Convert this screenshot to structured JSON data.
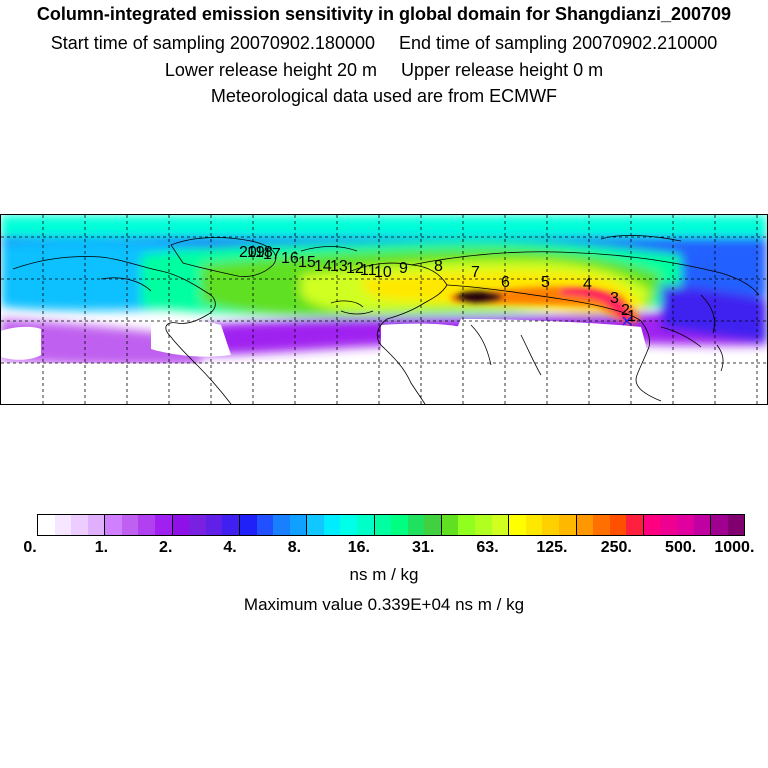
{
  "title": "Column-integrated emission sensitivity in global domain for Shangdianzi_200709",
  "start_label": "Start time of sampling 20070902.180000",
  "end_label": "End time of sampling 20070902.210000",
  "lower_label": "Lower release height   20 m",
  "upper_label": "Upper release height    0 m",
  "met_label": "Meteorological data used are from ECMWF",
  "trajectory_labels": [
    "20",
    "19",
    "18",
    "17",
    "16",
    "15",
    "14",
    "13",
    "12",
    "11",
    "10",
    "9",
    "8",
    "7",
    "6",
    "5",
    "4",
    "3",
    "2",
    "1"
  ],
  "colorbar": {
    "ticks": [
      "0.",
      "1.",
      "2.",
      "4.",
      "8.",
      "16.",
      "31.",
      "63.",
      "125.",
      "250.",
      "500.",
      "1000."
    ],
    "colors": [
      "#ffffff",
      "#f6e6ff",
      "#edccff",
      "#e0b0ff",
      "#d080ff",
      "#c060f0",
      "#b040f0",
      "#a020f0",
      "#9010e8",
      "#7a20e0",
      "#6020e8",
      "#4020f0",
      "#2020f8",
      "#2050ff",
      "#1880ff",
      "#10a0ff",
      "#10c8ff",
      "#00ecff",
      "#00ffe8",
      "#00ffc8",
      "#00ffa0",
      "#00ff80",
      "#20e060",
      "#40d040",
      "#60e020",
      "#90ff20",
      "#b0ff20",
      "#d0ff20",
      "#ffff00",
      "#ffe800",
      "#ffd000",
      "#ffb800",
      "#ff9800",
      "#ff7000",
      "#ff5000",
      "#ff2040",
      "#ff0080",
      "#f00090",
      "#e000a0",
      "#c000a0",
      "#a00090",
      "#800070"
    ],
    "units": "ns m / kg",
    "max_text": "Maximum value  0.339E+04 ns m / kg"
  }
}
